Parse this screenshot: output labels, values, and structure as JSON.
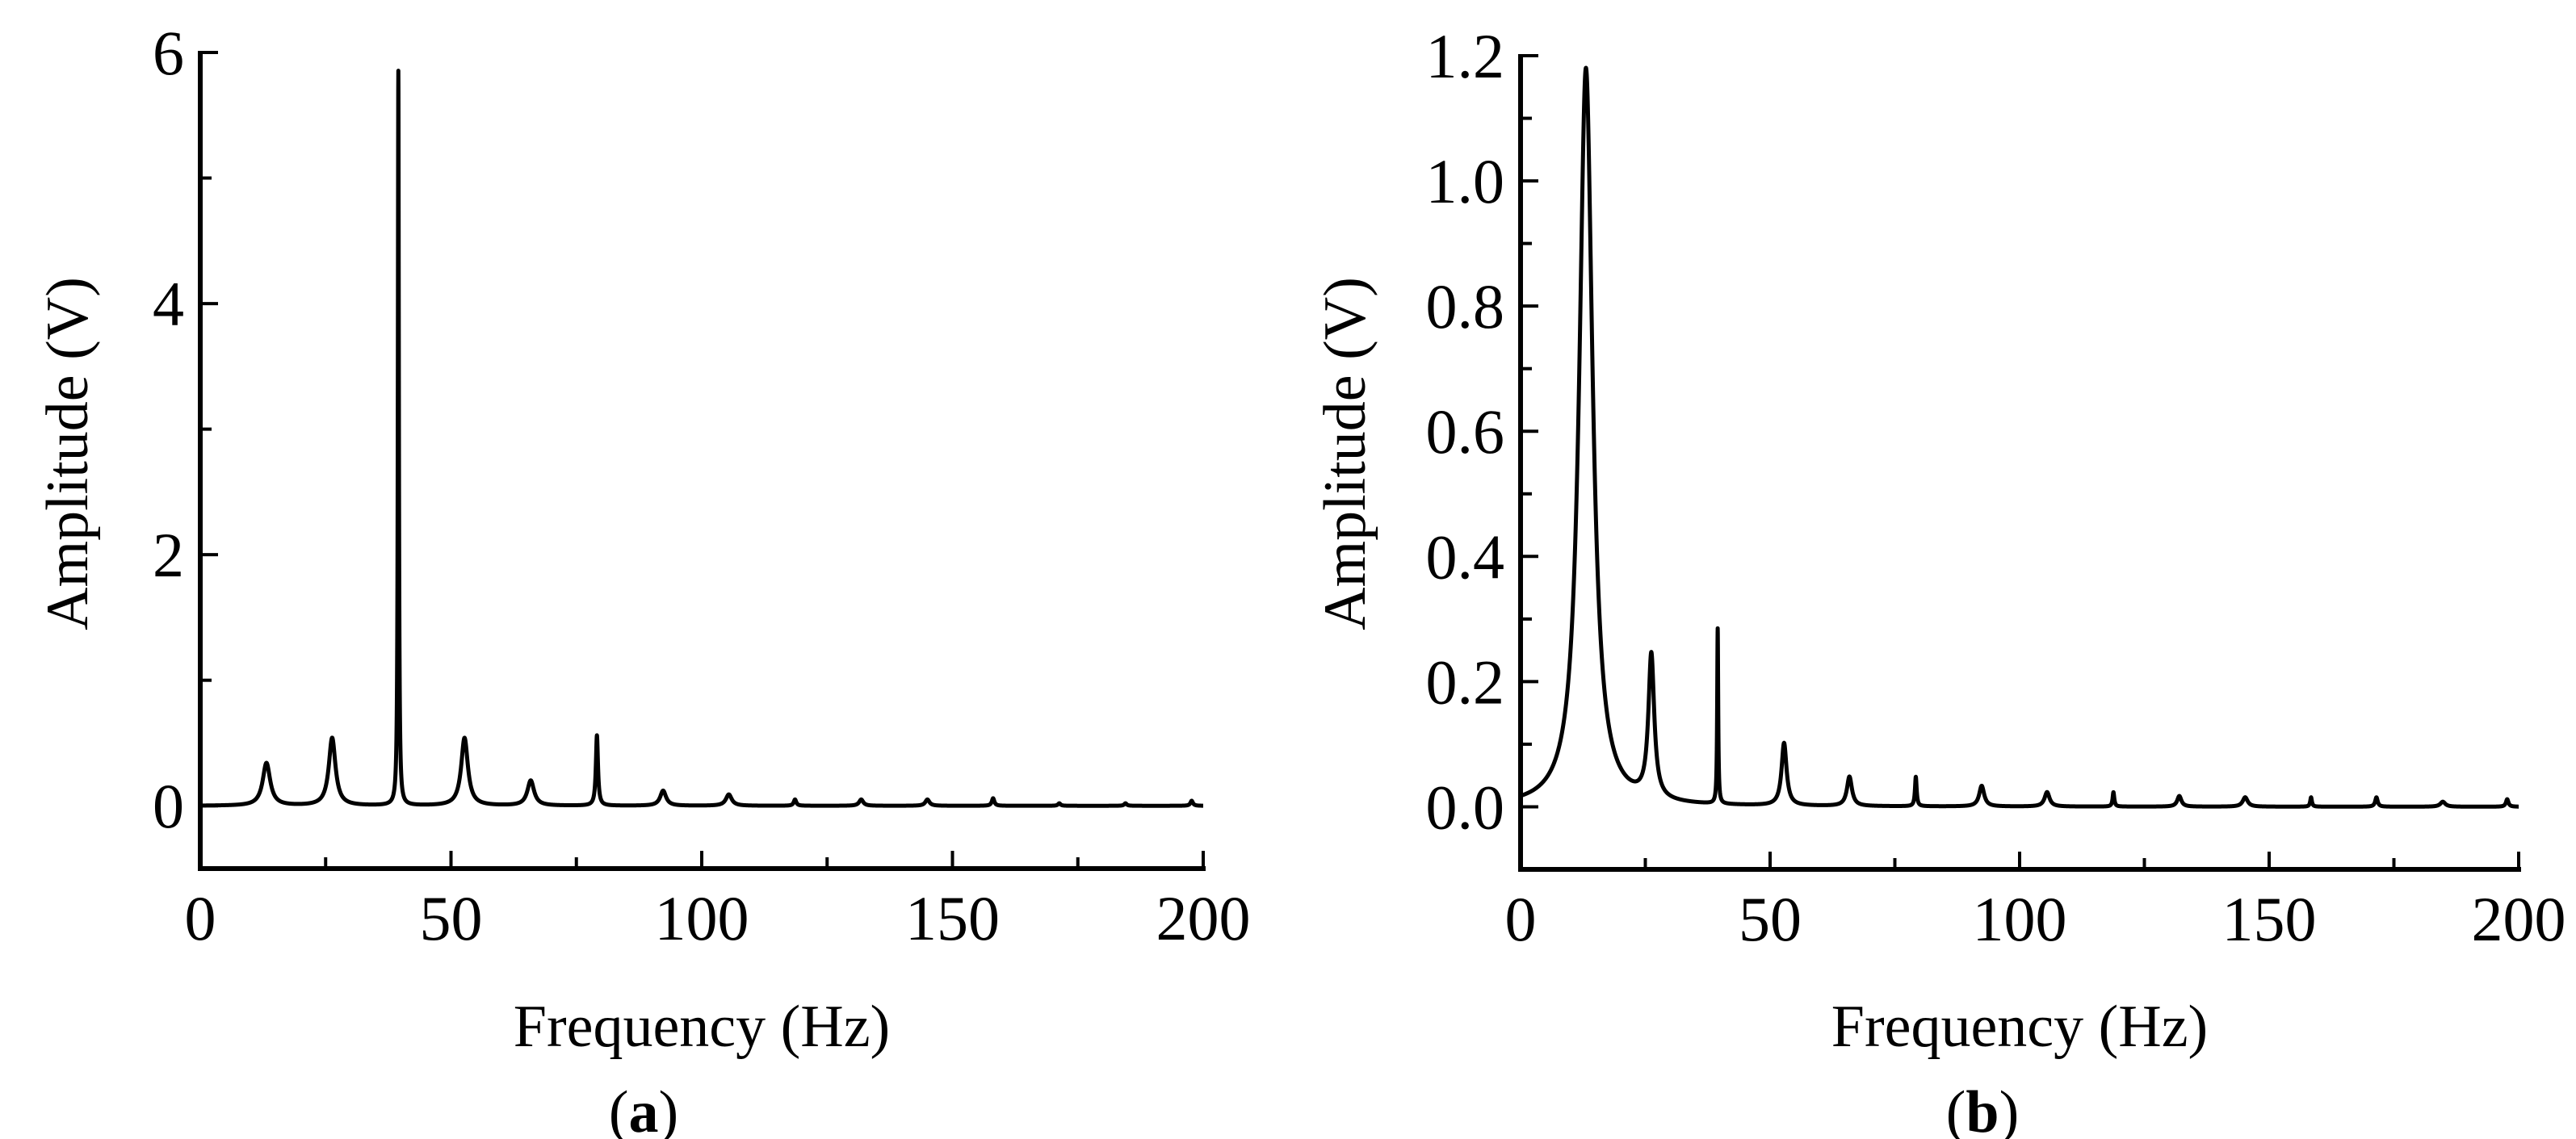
{
  "figure": {
    "panels": [
      {
        "id": "a",
        "label_open": "(",
        "label_letter": "a",
        "label_close": ")",
        "xlabel": "Frequency (Hz)",
        "ylabel": "Amplitude (V)"
      },
      {
        "id": "b",
        "label_open": "(",
        "label_letter": "b",
        "label_close": ")",
        "xlabel": "Frequency (Hz)",
        "ylabel": "Amplitude (V)"
      }
    ],
    "colors": {
      "line": "#000000",
      "axis": "#000000",
      "background": "#ffffff"
    }
  },
  "chart_data": [
    {
      "type": "line",
      "panel": "(a)",
      "title": "",
      "xlabel": "Frequency (Hz)",
      "ylabel": "Amplitude (V)",
      "xlim": [
        0,
        200
      ],
      "ylim": [
        -0.5,
        6
      ],
      "xticks": [
        0,
        50,
        100,
        150,
        200
      ],
      "xtick_labels": [
        "0",
        "50",
        "100",
        "150",
        "200"
      ],
      "x_minor_step": 25,
      "yticks": [
        0,
        2,
        4,
        6
      ],
      "ytick_labels": [
        "0",
        "2",
        "4",
        "6"
      ],
      "y_minor_step": 1,
      "grid": false,
      "legend": null,
      "baseline": 0.0,
      "peaks": [
        {
          "freq": 13.2,
          "amp": 0.34,
          "width": 0.9
        },
        {
          "freq": 26.3,
          "amp": 0.54,
          "width": 0.8
        },
        {
          "freq": 39.5,
          "amp": 5.85,
          "width": 0.12
        },
        {
          "freq": 52.7,
          "amp": 0.54,
          "width": 0.8
        },
        {
          "freq": 65.9,
          "amp": 0.2,
          "width": 0.8
        },
        {
          "freq": 79.1,
          "amp": 0.56,
          "width": 0.25
        },
        {
          "freq": 92.3,
          "amp": 0.12,
          "width": 0.7
        },
        {
          "freq": 105.4,
          "amp": 0.09,
          "width": 0.7
        },
        {
          "freq": 118.6,
          "amp": 0.05,
          "width": 0.3
        },
        {
          "freq": 131.8,
          "amp": 0.05,
          "width": 0.5
        },
        {
          "freq": 145.0,
          "amp": 0.05,
          "width": 0.5
        },
        {
          "freq": 158.1,
          "amp": 0.06,
          "width": 0.3
        },
        {
          "freq": 171.3,
          "amp": 0.02,
          "width": 0.3
        },
        {
          "freq": 184.5,
          "amp": 0.02,
          "width": 0.3
        },
        {
          "freq": 197.7,
          "amp": 0.04,
          "width": 0.3
        }
      ]
    },
    {
      "type": "line",
      "panel": "(b)",
      "title": "",
      "xlabel": "Frequency (Hz)",
      "ylabel": "Amplitude (V)",
      "xlim": [
        0,
        200
      ],
      "ylim": [
        -0.1,
        1.2
      ],
      "xticks": [
        0,
        50,
        100,
        150,
        200
      ],
      "xtick_labels": [
        "0",
        "50",
        "100",
        "150",
        "200"
      ],
      "x_minor_step": 25,
      "yticks": [
        0.0,
        0.2,
        0.4,
        0.6,
        0.8,
        1.0,
        1.2
      ],
      "ytick_labels": [
        "0.0",
        "0.2",
        "0.4",
        "0.6",
        "0.8",
        "1.0",
        "1.2"
      ],
      "y_minor_step": 0.1,
      "grid": false,
      "legend": null,
      "baseline": 0.0,
      "peaks": [
        {
          "freq": 13.1,
          "amp": 1.18,
          "width": 1.6
        },
        {
          "freq": 26.2,
          "amp": 0.23,
          "width": 0.7
        },
        {
          "freq": 39.5,
          "amp": 0.28,
          "width": 0.12
        },
        {
          "freq": 52.8,
          "amp": 0.1,
          "width": 0.6
        },
        {
          "freq": 65.9,
          "amp": 0.047,
          "width": 0.6
        },
        {
          "freq": 79.2,
          "amp": 0.047,
          "width": 0.2
        },
        {
          "freq": 92.4,
          "amp": 0.033,
          "width": 0.6
        },
        {
          "freq": 105.5,
          "amp": 0.023,
          "width": 0.6
        },
        {
          "freq": 118.8,
          "amp": 0.023,
          "width": 0.2
        },
        {
          "freq": 132.0,
          "amp": 0.017,
          "width": 0.5
        },
        {
          "freq": 145.2,
          "amp": 0.015,
          "width": 0.6
        },
        {
          "freq": 158.4,
          "amp": 0.015,
          "width": 0.2
        },
        {
          "freq": 171.5,
          "amp": 0.015,
          "width": 0.3
        },
        {
          "freq": 184.8,
          "amp": 0.008,
          "width": 0.6
        },
        {
          "freq": 197.7,
          "amp": 0.012,
          "width": 0.3
        }
      ]
    }
  ]
}
